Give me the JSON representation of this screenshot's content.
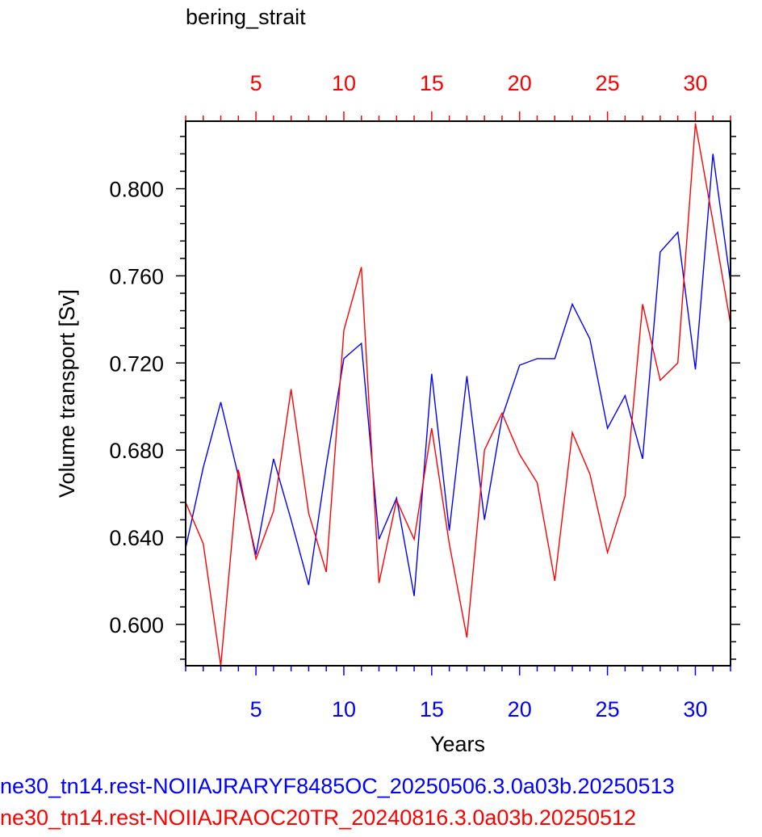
{
  "chart_data": {
    "type": "line",
    "title": "bering_strait",
    "xlabel": "Years",
    "ylabel": "Volume transport [Sv]",
    "xlim": [
      1,
      32
    ],
    "ylim": [
      0.581,
      0.831
    ],
    "x_ticks": [
      5,
      10,
      15,
      20,
      25,
      30
    ],
    "y_ticks": [
      0.6,
      0.64,
      0.68,
      0.72,
      0.76,
      0.8
    ],
    "y_tick_labels": [
      "0.600",
      "0.640",
      "0.680",
      "0.720",
      "0.760",
      "0.800"
    ],
    "x_tick_labels": [
      "5",
      "10",
      "15",
      "20",
      "25",
      "30"
    ],
    "bottom_axis_color": "#0000ff",
    "top_axis_color": "#ff0000",
    "grid": false,
    "series": [
      {
        "name": "ne30_tn14.rest-NOIIAJRARYF8485OC_20250506.3.0a03b.20250513",
        "color": "#0000ff",
        "x": [
          1,
          2,
          3,
          4,
          5,
          6,
          7,
          8,
          9,
          10,
          11,
          12,
          13,
          14,
          15,
          16,
          17,
          18,
          19,
          20,
          21,
          22,
          23,
          24,
          25,
          26,
          27,
          28,
          29,
          30,
          31,
          32
        ],
        "values": [
          0.635,
          0.672,
          0.702,
          0.668,
          0.632,
          0.676,
          0.648,
          0.618,
          0.673,
          0.722,
          0.729,
          0.639,
          0.658,
          0.613,
          0.715,
          0.643,
          0.714,
          0.648,
          0.695,
          0.719,
          0.722,
          0.722,
          0.747,
          0.731,
          0.69,
          0.705,
          0.676,
          0.771,
          0.78,
          0.717,
          0.816,
          0.757
        ]
      },
      {
        "name": "ne30_tn14.rest-NOIIAJRAOC20TR_20240816.3.0a03b.20250512",
        "color": "#ff0000",
        "x": [
          1,
          2,
          3,
          4,
          5,
          6,
          7,
          8,
          9,
          10,
          11,
          12,
          13,
          14,
          15,
          16,
          17,
          18,
          19,
          20,
          21,
          22,
          23,
          24,
          25,
          26,
          27,
          28,
          29,
          30,
          31,
          32
        ],
        "values": [
          0.656,
          0.637,
          0.581,
          0.671,
          0.63,
          0.652,
          0.708,
          0.651,
          0.624,
          0.735,
          0.764,
          0.619,
          0.657,
          0.639,
          0.69,
          0.637,
          0.594,
          0.68,
          0.697,
          0.678,
          0.665,
          0.62,
          0.688,
          0.669,
          0.633,
          0.659,
          0.747,
          0.712,
          0.72,
          0.83,
          0.785,
          0.738
        ]
      }
    ]
  },
  "captions": {
    "blue": "ne30_tn14.rest-NOIIAJRARYF8485OC_20250506.3.0a03b.20250513",
    "red": "ne30_tn14.rest-NOIIAJRAOC20TR_20240816.3.0a03b.20250512"
  }
}
